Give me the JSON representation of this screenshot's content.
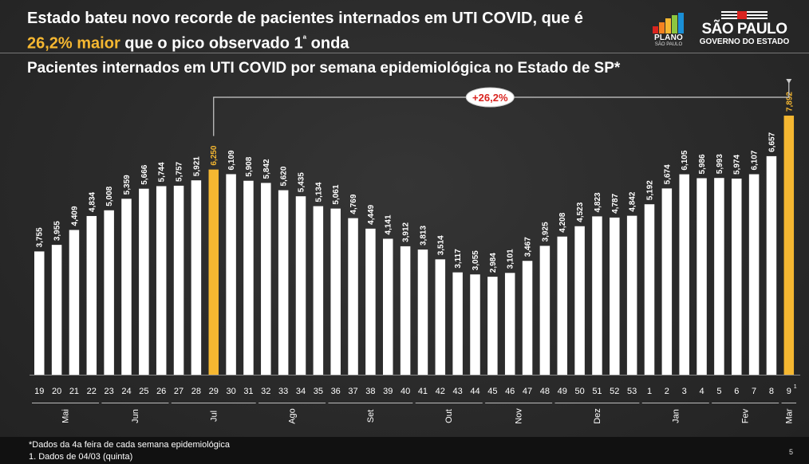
{
  "headline": {
    "line1": "Estado bateu novo recorde de pacientes internados em UTI COVID, que é",
    "line2_highlight_a": "26,2% maior",
    "line2_white": " que o pico observado 1",
    "line2_sup": "ª",
    "line2_highlight_b": " onda"
  },
  "subtitle": "Pacientes internados em UTI COVID por semana epidemiológica no Estado de SP*",
  "logos": {
    "plano_title": "PLANO",
    "plano_sub": "SÃO PAULO",
    "sp_title": "SÃO PAULO",
    "sp_sub": "GOVERNO DO ESTADO"
  },
  "footer": {
    "note1": "*Dados da 4a feira de cada semana epidemiológica",
    "note2": "1. Dados de 04/03 (quinta)",
    "page": "5"
  },
  "colors": {
    "bar_default": "#ffffff",
    "bar_highlight": "#f5b731",
    "callout_text": "#d9231f",
    "background": "#2a2a2a"
  },
  "chart_data": {
    "type": "bar",
    "categories": [
      "19",
      "20",
      "21",
      "22",
      "23",
      "24",
      "25",
      "26",
      "27",
      "28",
      "29",
      "30",
      "31",
      "32",
      "33",
      "34",
      "35",
      "36",
      "37",
      "38",
      "39",
      "40",
      "41",
      "42",
      "43",
      "44",
      "45",
      "46",
      "47",
      "48",
      "49",
      "50",
      "51",
      "52",
      "53",
      "1",
      "2",
      "3",
      "4",
      "5",
      "6",
      "7",
      "8",
      "9"
    ],
    "values": [
      3755,
      3955,
      4409,
      4834,
      5008,
      5359,
      5666,
      5744,
      5757,
      5921,
      6250,
      6109,
      5908,
      5842,
      5620,
      5435,
      5134,
      5061,
      4769,
      4449,
      4141,
      3912,
      3813,
      3514,
      3117,
      3055,
      2984,
      3101,
      3467,
      3925,
      4208,
      4523,
      4823,
      4787,
      4842,
      5192,
      5674,
      6105,
      5986,
      5993,
      5974,
      6107,
      6657,
      7892
    ],
    "value_labels": [
      "3,755",
      "3,955",
      "4,409",
      "4,834",
      "5,008",
      "5,359",
      "5,666",
      "5,744",
      "5,757",
      "5,921",
      "6,250",
      "6,109",
      "5,908",
      "5,842",
      "5,620",
      "5,435",
      "5,134",
      "5,061",
      "4,769",
      "4,449",
      "4,141",
      "3,912",
      "3,813",
      "3,514",
      "3,117",
      "3,055",
      "2,984",
      "3,101",
      "3,467",
      "3,925",
      "4,208",
      "4,523",
      "4,823",
      "4,787",
      "4,842",
      "5,192",
      "5,674",
      "6,105",
      "5,986",
      "5,993",
      "5,974",
      "6,107",
      "6,657",
      "7,892"
    ],
    "highlighted": [
      "29",
      "9"
    ],
    "last_label_superscript": "1",
    "ylim": [
      0,
      8500
    ],
    "months": [
      {
        "label": "Mai",
        "from": 0,
        "to": 3
      },
      {
        "label": "Jun",
        "from": 4,
        "to": 7
      },
      {
        "label": "Jul",
        "from": 8,
        "to": 12
      },
      {
        "label": "Ago",
        "from": 13,
        "to": 16
      },
      {
        "label": "Set",
        "from": 17,
        "to": 21
      },
      {
        "label": "Out",
        "from": 22,
        "to": 25
      },
      {
        "label": "Nov",
        "from": 26,
        "to": 29
      },
      {
        "label": "Dez",
        "from": 30,
        "to": 34
      },
      {
        "label": "Jan",
        "from": 35,
        "to": 38
      },
      {
        "label": "Fev",
        "from": 39,
        "to": 42
      },
      {
        "label": "Mar",
        "from": 43,
        "to": 43
      }
    ],
    "annotation": {
      "text": "+26,2%",
      "from": "29",
      "to": "9"
    }
  }
}
